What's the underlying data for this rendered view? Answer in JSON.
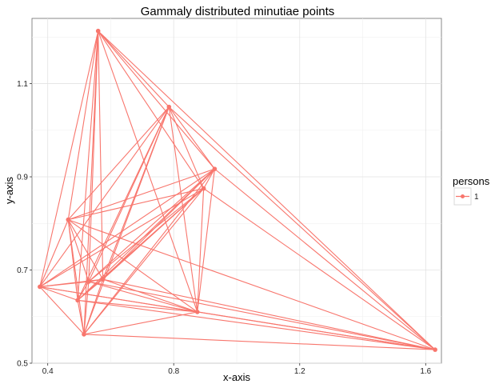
{
  "chart_data": {
    "type": "scatter",
    "title": "Gammaly distributed minutiae points",
    "xlabel": "x-axis",
    "ylabel": "y-axis",
    "xlim": [
      0.35,
      1.65
    ],
    "ylim": [
      0.5,
      1.24
    ],
    "x_ticks": [
      0.4,
      0.8,
      1.2,
      1.6
    ],
    "x_tick_labels": [
      "0.4",
      "0.8",
      "1.2",
      "1.6"
    ],
    "y_ticks": [
      0.5,
      0.7,
      0.9,
      1.1
    ],
    "y_tick_labels": [
      "0.5",
      "0.7",
      "0.9",
      "1.1"
    ],
    "grid": true,
    "legend": {
      "title": "persons",
      "position": "right",
      "entries": [
        "1"
      ]
    },
    "color": "#F8766D",
    "connect_all_pairs": true,
    "series": [
      {
        "name": "1",
        "points": [
          {
            "x": 0.56,
            "y": 1.213
          },
          {
            "x": 0.785,
            "y": 1.05
          },
          {
            "x": 0.93,
            "y": 0.917
          },
          {
            "x": 0.895,
            "y": 0.875
          },
          {
            "x": 0.465,
            "y": 0.808
          },
          {
            "x": 0.375,
            "y": 0.664
          },
          {
            "x": 0.53,
            "y": 0.675
          },
          {
            "x": 0.575,
            "y": 0.68
          },
          {
            "x": 0.495,
            "y": 0.635
          },
          {
            "x": 0.515,
            "y": 0.562
          },
          {
            "x": 0.875,
            "y": 0.61
          },
          {
            "x": 1.63,
            "y": 0.529
          }
        ]
      }
    ]
  }
}
